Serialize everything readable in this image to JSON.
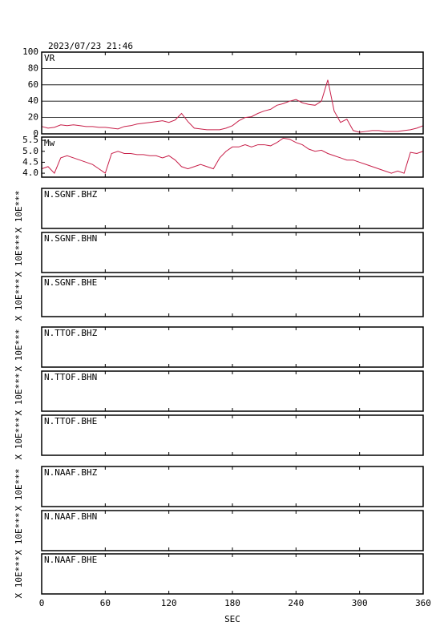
{
  "title": "2023/07/23 21:46",
  "chart_data": [
    {
      "type": "line",
      "title": "VR",
      "ylim": [
        0,
        100
      ],
      "yticks": [
        0,
        20,
        40,
        60,
        80,
        100
      ],
      "grid": true,
      "series": [
        {
          "color": "#c8204a",
          "x": [
            0,
            6,
            12,
            18,
            24,
            30,
            36,
            42,
            48,
            54,
            60,
            66,
            72,
            78,
            84,
            90,
            96,
            102,
            108,
            114,
            120,
            126,
            132,
            138,
            144,
            150,
            156,
            162,
            168,
            174,
            180,
            186,
            192,
            198,
            204,
            210,
            216,
            222,
            228,
            234,
            240,
            246,
            252,
            258,
            264,
            270,
            276,
            282,
            288,
            294,
            300,
            306,
            312,
            318,
            324,
            330,
            336,
            342,
            348,
            354,
            360
          ],
          "values": [
            9,
            7,
            8,
            11,
            10,
            11,
            10,
            9,
            9,
            8,
            8,
            7,
            6,
            9,
            10,
            12,
            13,
            14,
            15,
            16,
            14,
            17,
            25,
            15,
            7,
            6,
            5,
            5,
            5,
            7,
            10,
            16,
            20,
            21,
            25,
            28,
            30,
            35,
            37,
            40,
            42,
            38,
            36,
            35,
            40,
            66,
            28,
            14,
            18,
            4,
            2,
            3,
            4,
            4,
            3,
            3,
            3,
            4,
            5,
            7,
            10
          ]
        }
      ]
    },
    {
      "type": "line",
      "title": "Mw",
      "ylim": [
        3.82,
        5.65
      ],
      "yticks": [
        {
          "value": 4,
          "label": "4.0"
        },
        4.5,
        {
          "value": 5,
          "label": "5.0"
        },
        5.5
      ],
      "grid": false,
      "series": [
        {
          "color": "#c8204a",
          "x": [
            0,
            6,
            12,
            18,
            24,
            30,
            36,
            42,
            48,
            54,
            60,
            66,
            72,
            78,
            84,
            90,
            96,
            102,
            108,
            114,
            120,
            126,
            132,
            138,
            144,
            150,
            156,
            162,
            168,
            174,
            180,
            186,
            192,
            198,
            204,
            210,
            216,
            222,
            228,
            234,
            240,
            246,
            252,
            258,
            264,
            270,
            276,
            282,
            288,
            294,
            300,
            306,
            312,
            318,
            324,
            330,
            336,
            342,
            348,
            354,
            360
          ],
          "values": [
            4.2,
            4.3,
            4.0,
            4.7,
            4.8,
            4.7,
            4.6,
            4.5,
            4.4,
            4.2,
            4.0,
            4.9,
            5.0,
            4.9,
            4.9,
            4.85,
            4.85,
            4.8,
            4.8,
            4.7,
            4.8,
            4.6,
            4.3,
            4.2,
            4.3,
            4.4,
            4.3,
            4.2,
            4.7,
            5.0,
            5.2,
            5.2,
            5.3,
            5.2,
            5.3,
            5.3,
            5.25,
            5.4,
            5.6,
            5.55,
            5.4,
            5.3,
            5.1,
            5.0,
            5.05,
            4.9,
            4.8,
            4.7,
            4.6,
            4.6,
            4.5,
            4.4,
            4.3,
            4.2,
            4.1,
            4.0,
            4.1,
            4.0,
            4.95,
            4.9,
            5.0
          ]
        }
      ]
    },
    {
      "type": "line",
      "title": "N.SGNF.BHZ",
      "ylabel": "X 10E***"
    },
    {
      "type": "line",
      "title": "N.SGNF.BHN",
      "ylabel": "X 10E***"
    },
    {
      "type": "line",
      "title": "N.SGNF.BHE",
      "ylabel": "X 10E***"
    },
    {
      "type": "line",
      "title": "N.TTOF.BHZ",
      "ylabel": "X 10E***"
    },
    {
      "type": "line",
      "title": "N.TTOF.BHN",
      "ylabel": "X 10E***"
    },
    {
      "type": "line",
      "title": "N.TTOF.BHE",
      "ylabel": "X 10E***"
    },
    {
      "type": "line",
      "title": "N.NAAF.BHZ",
      "ylabel": "X 10E***"
    },
    {
      "type": "line",
      "title": "N.NAAF.BHN",
      "ylabel": "X 10E***"
    },
    {
      "type": "line",
      "title": "N.NAAF.BHE",
      "ylabel": "X 10E***",
      "xlabel": "SEC",
      "xlim": [
        0,
        360
      ],
      "xticks": [
        0,
        60,
        120,
        180,
        240,
        300,
        360
      ]
    }
  ]
}
